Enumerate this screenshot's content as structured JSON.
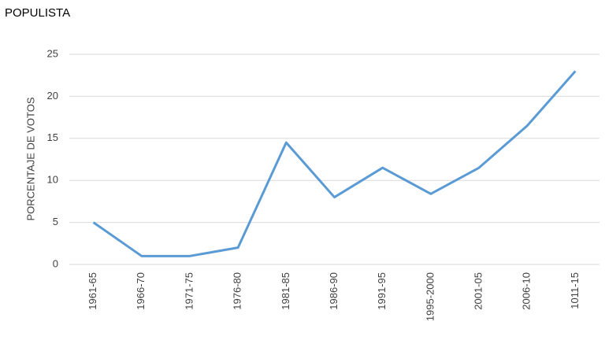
{
  "chart_data": {
    "type": "line",
    "title": "POPULISTA",
    "y_label": "PORCENTAJE DE VOTOS",
    "categories": [
      "1961-65",
      "1966-70",
      "1971-75",
      "1976-80",
      "1981-85",
      "1986-90",
      "1991-95",
      "1995-2000",
      "2001-05",
      "2006-10",
      "1011-15"
    ],
    "series": [
      {
        "name": "POPULISTA",
        "color": "#5b9bd5",
        "values": [
          5,
          1,
          1,
          2,
          14.5,
          8,
          11.5,
          8.4,
          11.5,
          16.5,
          23
        ]
      }
    ],
    "ylim": [
      0,
      25
    ],
    "yticks": [
      0,
      5,
      10,
      15,
      20,
      25
    ],
    "grid": true
  }
}
